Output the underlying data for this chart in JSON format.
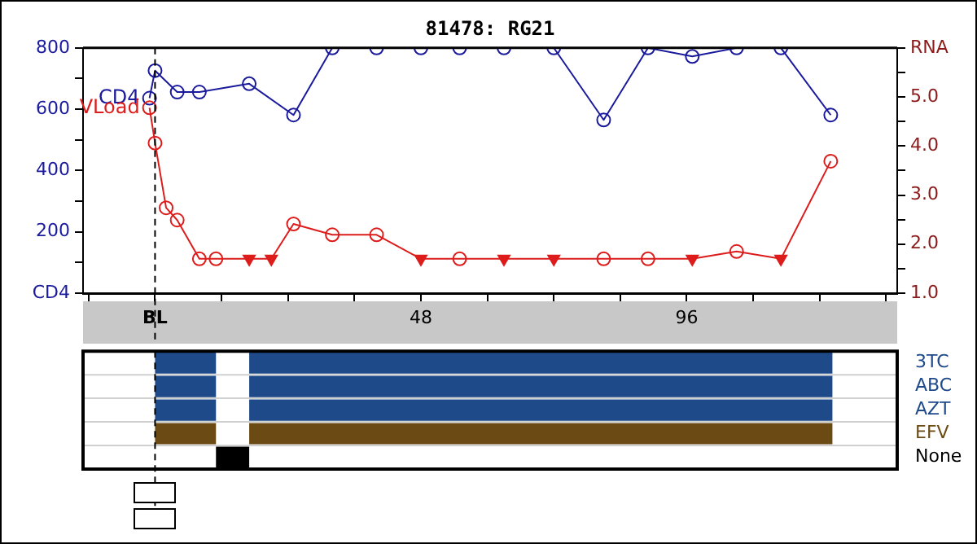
{
  "chart_data": [
    {
      "type": "line",
      "title": "81478: RG21",
      "xlim": [
        -13,
        134
      ],
      "xticks": [
        {
          "value": -12,
          "label": null
        },
        {
          "value": 0,
          "label": "BL"
        },
        {
          "value": 12,
          "label": null
        },
        {
          "value": 24,
          "label": null
        },
        {
          "value": 36,
          "label": null
        },
        48,
        {
          "value": 60,
          "label": null
        },
        {
          "value": 72,
          "label": null
        },
        {
          "value": 84,
          "label": null
        },
        96,
        {
          "value": 108,
          "label": null
        },
        {
          "value": 120,
          "label": null
        },
        {
          "value": 132,
          "label": null
        }
      ],
      "ylim": [
        0,
        800
      ],
      "yticks": [
        {
          "value": 0,
          "label": "CD4"
        },
        {
          "value": 100,
          "label": null
        },
        200,
        {
          "value": 300,
          "label": null
        },
        400,
        {
          "value": 500,
          "label": null
        },
        600,
        {
          "value": 700,
          "label": null
        },
        800
      ],
      "y2lim": [
        1,
        6
      ],
      "y2ticks": [
        {
          "value": 1,
          "label": "1.0"
        },
        {
          "value": 1.5,
          "label": null
        },
        {
          "value": 2,
          "label": "2.0"
        },
        {
          "value": 2.5,
          "label": null
        },
        {
          "value": 3,
          "label": "3.0"
        },
        {
          "value": 3.5,
          "label": null
        },
        {
          "value": 4,
          "label": "4.0"
        },
        {
          "value": 4.5,
          "label": null
        },
        {
          "value": 5,
          "label": "5.0"
        },
        {
          "value": 5.5,
          "label": null
        },
        {
          "value": 6,
          "label": "RNA"
        }
      ],
      "grid": false,
      "legend": false,
      "line_style": "solid",
      "ref_lines": [
        {
          "axis": "x",
          "value": 0,
          "color": "#000000",
          "line_style": "dashed"
        }
      ],
      "series": [
        {
          "name": "CD4",
          "color": "#1a1a9c",
          "marker": "circle",
          "x": [
            -1,
            0,
            4,
            8,
            17,
            25,
            32,
            40,
            48,
            55,
            63,
            72,
            81,
            89,
            97,
            105,
            113,
            122
          ],
          "values": [
            636,
            726,
            656,
            656,
            683,
            581,
            800,
            800,
            800,
            800,
            800,
            800,
            565,
            800,
            772,
            800,
            800,
            581
          ]
        },
        {
          "name": "VLoad",
          "color": "#dd1c1c",
          "axis": "y2",
          "marker": "none",
          "x": [
            -1,
            0,
            2,
            4,
            8,
            11,
            17,
            21,
            25,
            32,
            40,
            48,
            55,
            63,
            72,
            81,
            89,
            97,
            105,
            113,
            122
          ],
          "values": [
            4.78,
            4.06,
            2.74,
            2.49,
            1.7,
            1.7,
            1.7,
            1.7,
            2.41,
            2.19,
            2.19,
            1.7,
            1.7,
            1.7,
            1.7,
            1.7,
            1.7,
            1.7,
            1.85,
            1.7,
            3.69
          ]
        },
        {
          "type": "scatter",
          "color": "#dd1c1c",
          "axis": "y2",
          "marker": "circle",
          "x": [
            -1,
            0,
            2,
            4,
            8,
            11,
            25,
            32,
            40,
            55,
            81,
            89,
            105,
            122
          ],
          "values": [
            4.78,
            4.06,
            2.74,
            2.49,
            1.7,
            1.7,
            2.41,
            2.19,
            2.19,
            1.7,
            1.7,
            1.7,
            1.85,
            3.69
          ]
        },
        {
          "type": "scatter",
          "color": "#dd1c1c",
          "axis": "y2",
          "marker": "triangle",
          "x": [
            17,
            21,
            48,
            63,
            72,
            97,
            113
          ],
          "values": [
            1.7,
            1.7,
            1.7,
            1.7,
            1.7,
            1.7,
            1.7
          ]
        }
      ]
    },
    {
      "type": "bar",
      "orientation": "horizontal",
      "categories": [
        "3TC",
        "ABC",
        "AZT",
        "EFV",
        "None"
      ],
      "xlim": [
        -13,
        134
      ],
      "tick_labels": "y",
      "grid": false,
      "legend": false,
      "ref_lines": [
        {
          "axis": "x",
          "value": 0,
          "color": "#000000",
          "line_style": "dashed"
        }
      ],
      "series": [
        {
          "colors": [
            "#1f4a8a",
            "#1f4a8a",
            "#1f4a8a",
            "#6b4a14",
            "#000000"
          ],
          "base": [
            0,
            0,
            0,
            0,
            11
          ],
          "values": [
            11,
            11,
            11,
            11,
            6
          ]
        },
        {
          "colors": [
            "#1f4a8a",
            "#1f4a8a",
            "#1f4a8a",
            "#6b4a14",
            null
          ],
          "base": [
            17,
            17,
            17,
            17,
            null
          ],
          "values": [
            105.3,
            105.3,
            105.3,
            105.3,
            null
          ]
        }
      ]
    }
  ]
}
